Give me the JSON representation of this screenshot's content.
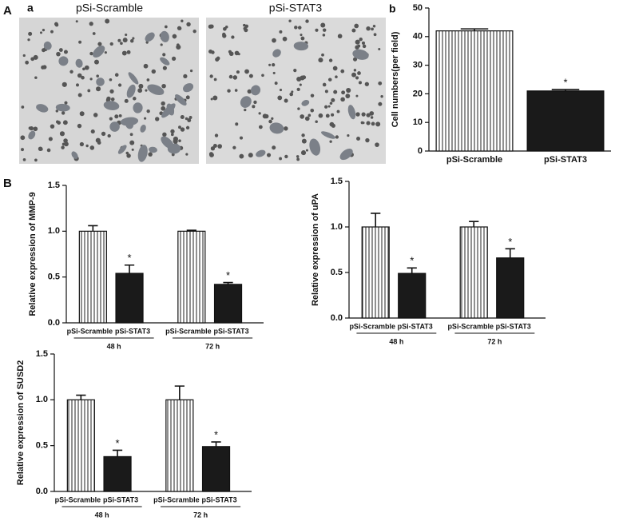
{
  "panel_labels": [
    "A",
    "a",
    "b",
    "B"
  ],
  "images": [
    {
      "title": "pSi-Scramble"
    },
    {
      "title": "pSi-STAT3"
    }
  ],
  "chart_data": [
    {
      "type": "bar",
      "ylabel": "Cell numbers(per field)",
      "categories": [
        "pSi-Scramble",
        "pSi-STAT3"
      ],
      "values": [
        42,
        21
      ],
      "errors": [
        0.7,
        0.5
      ],
      "annotations": [
        null,
        "*"
      ],
      "fills": [
        "hatched",
        "#1a1a1a"
      ],
      "ylim": [
        0,
        50
      ],
      "yticks": [
        0,
        10,
        20,
        30,
        40,
        50
      ]
    },
    {
      "type": "bar",
      "ylabel": "Relative expression of MMP-9",
      "categories": [
        "pSi-Scramble",
        "pSi-STAT3",
        "pSi-Scramble",
        "pSi-STAT3"
      ],
      "groups": [
        "48 h",
        "72 h"
      ],
      "values": [
        1.0,
        0.54,
        1.0,
        0.42
      ],
      "errors": [
        0.06,
        0.09,
        0.01,
        0.02
      ],
      "annotations": [
        null,
        "*",
        null,
        "*"
      ],
      "fills": [
        "hatched",
        "#1a1a1a",
        "hatched",
        "#1a1a1a"
      ],
      "ylim": [
        0,
        1.5
      ],
      "yticks": [
        {
          "value": 0,
          "label": "0.0"
        },
        0.5,
        {
          "value": 1,
          "label": "1.0"
        },
        1.5
      ]
    },
    {
      "type": "bar",
      "ylabel": "Relative expression of uPA",
      "categories": [
        "pSi-Scramble",
        "pSi-STAT3",
        "pSi-Scramble",
        "pSi-STAT3"
      ],
      "groups": [
        "48 h",
        "72 h"
      ],
      "values": [
        1.0,
        0.49,
        1.0,
        0.66
      ],
      "errors": [
        0.15,
        0.06,
        0.06,
        0.1
      ],
      "annotations": [
        null,
        "*",
        null,
        "*"
      ],
      "fills": [
        "hatched",
        "#1a1a1a",
        "hatched",
        "#1a1a1a"
      ],
      "ylim": [
        0,
        1.5
      ],
      "yticks": [
        {
          "value": 0,
          "label": "0.0"
        },
        0.5,
        {
          "value": 1,
          "label": "1.0"
        },
        1.5
      ]
    },
    {
      "type": "bar",
      "ylabel": "Relative expression of SUSD2",
      "categories": [
        "pSi-Scramble",
        "pSi-STAT3",
        "pSi-Scramble",
        "pSi-STAT3"
      ],
      "groups": [
        "48 h",
        "72 h"
      ],
      "values": [
        1.0,
        0.38,
        1.0,
        0.49
      ],
      "errors": [
        0.05,
        0.07,
        0.15,
        0.05
      ],
      "annotations": [
        null,
        "*",
        null,
        "*"
      ],
      "fills": [
        "hatched",
        "#1a1a1a",
        "hatched",
        "#1a1a1a"
      ],
      "ylim": [
        0,
        1.5
      ],
      "yticks": [
        {
          "value": 0,
          "label": "0.0"
        },
        0.5,
        {
          "value": 1,
          "label": "1.0"
        },
        1.5
      ]
    }
  ]
}
